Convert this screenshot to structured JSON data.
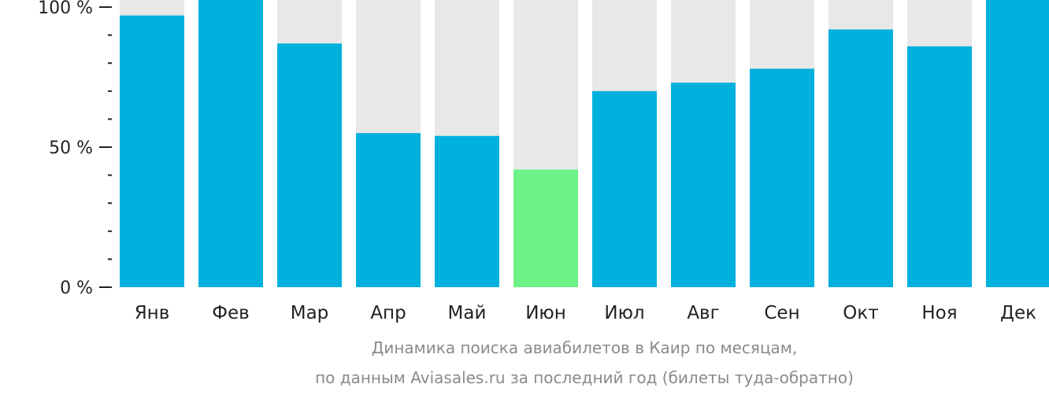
{
  "chart_data": {
    "type": "bar",
    "categories": [
      "Янв",
      "Фев",
      "Мар",
      "Апр",
      "Май",
      "Июн",
      "Июл",
      "Авг",
      "Сен",
      "Окт",
      "Ноя",
      "Дек"
    ],
    "values": [
      97,
      100,
      87,
      55,
      54,
      42,
      70,
      73,
      78,
      92,
      86,
      100
    ],
    "ylim": [
      0,
      100
    ],
    "yticks": [
      "0 %",
      "50 %",
      "100 %"
    ],
    "ytick_values": [
      0,
      50,
      100
    ],
    "highlight_index": 5,
    "colors": {
      "bar": "#00b0dd",
      "highlight": "#6cf287",
      "background_bar": "#e8e8e8",
      "axis": "#222222",
      "caption": "#8a8a8a"
    }
  },
  "caption": {
    "line1": "Динамика поиска авиабилетов в Каир по месяцам,",
    "line2": "по данным Aviasales.ru за последний год (билеты туда-обратно)"
  }
}
